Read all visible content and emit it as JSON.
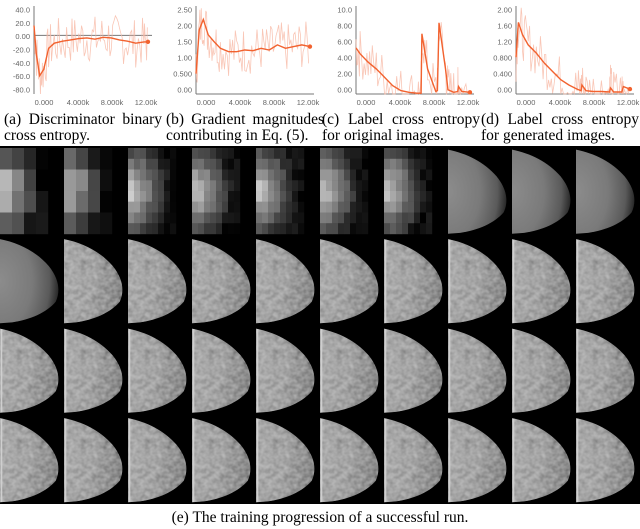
{
  "captions": {
    "a": "(a) Discriminator binary cross entropy.",
    "b": "(b) Gradient magnitudes contributing in Eq. (5).",
    "c": "(c) Label cross entropy for original images.",
    "d": "(d) Label cross entropy for generated images.",
    "e": "(e) The training progression of a successful run."
  },
  "colors": {
    "line": "#f2622f",
    "noise": "#f7b8a4",
    "axis": "#777777"
  },
  "chart_data": [
    {
      "type": "line",
      "x_ticks": [
        "0.000",
        "4.000k",
        "8.000k",
        "12.00k"
      ],
      "y_ticks": [
        "40.0",
        "20.0",
        "0.00",
        "-20.0",
        "-40.0",
        "-60.0",
        "-80.0"
      ],
      "xlim": [
        0,
        14500
      ],
      "ylim": [
        -90,
        45
      ],
      "series": [
        {
          "x": [
            0,
            300,
            700,
            1200,
            1800,
            2500,
            3500,
            4500,
            5500,
            6500,
            7500,
            8500,
            9500,
            10500,
            11500,
            12500,
            13500,
            14000
          ],
          "y": [
            15,
            -30,
            -62,
            -52,
            -20,
            -12,
            -9,
            -7,
            -5,
            -4,
            -6,
            -3,
            -4,
            -7,
            -9,
            -12,
            -10,
            -10
          ]
        }
      ]
    },
    {
      "type": "line",
      "x_ticks": [
        "0.000",
        "4.000k",
        "8.000k",
        "12.00k"
      ],
      "y_ticks": [
        "2.50",
        "2.00",
        "1.50",
        "1.00",
        "0.500",
        "0.00"
      ],
      "xlim": [
        0,
        14500
      ],
      "ylim": [
        0,
        2.6
      ],
      "series": [
        {
          "x": [
            0,
            400,
            900,
            1500,
            2200,
            3000,
            4000,
            5000,
            6000,
            7000,
            8000,
            9000,
            10000,
            11000,
            12000,
            13000,
            14000
          ],
          "y": [
            0.6,
            1.9,
            2.2,
            1.75,
            1.55,
            1.35,
            1.25,
            1.25,
            1.3,
            1.28,
            1.35,
            1.3,
            1.45,
            1.35,
            1.4,
            1.45,
            1.4
          ]
        }
      ]
    },
    {
      "type": "line",
      "x_ticks": [
        "0.000",
        "4.000k",
        "8.000k",
        "12.00k"
      ],
      "y_ticks": [
        "10.0",
        "8.00",
        "6.00",
        "4.00",
        "2.00",
        "0.00"
      ],
      "xlim": [
        0,
        14500
      ],
      "ylim": [
        0,
        10.5
      ],
      "series": [
        {
          "x": [
            0,
            500,
            1500,
            2500,
            3500,
            4500,
            5500,
            6500,
            7500,
            8000,
            8100,
            8800,
            9800,
            10000,
            10200,
            11000,
            11300,
            12000,
            12500,
            12600,
            13000,
            14000
          ],
          "y": [
            5.5,
            4.8,
            3.8,
            3.0,
            2.0,
            1.0,
            0.4,
            0.2,
            0.1,
            0.1,
            7.2,
            3.0,
            0.3,
            0.4,
            8.5,
            3.0,
            0.5,
            0.2,
            0.3,
            0.9,
            0.3,
            0.2
          ]
        }
      ]
    },
    {
      "type": "line",
      "x_ticks": [
        "0.000",
        "4.000k",
        "8.000k",
        "12.00k"
      ],
      "y_ticks": [
        "2.00",
        "1.60",
        "1.20",
        "0.800",
        "0.400",
        "0.00"
      ],
      "xlim": [
        0,
        14500
      ],
      "ylim": [
        0,
        2.15
      ],
      "series": [
        {
          "x": [
            0,
            300,
            800,
            1500,
            2500,
            3500,
            4500,
            5500,
            6500,
            7500,
            8000,
            8100,
            8600,
            9500,
            10500,
            11500,
            11600,
            12000,
            13000,
            13200,
            14000
          ],
          "y": [
            0.9,
            1.75,
            1.45,
            1.2,
            1.0,
            0.75,
            0.55,
            0.35,
            0.22,
            0.12,
            0.08,
            0.22,
            0.08,
            0.06,
            0.06,
            0.05,
            0.15,
            0.05,
            0.05,
            0.18,
            0.12
          ]
        }
      ]
    }
  ],
  "progression": {
    "rows": 4,
    "cols": 10,
    "resolutions": [
      [
        4,
        4,
        8,
        8,
        8,
        8,
        8,
        16,
        16,
        16
      ],
      [
        16,
        32,
        32,
        32,
        32,
        32,
        64,
        64,
        64,
        64
      ],
      [
        64,
        64,
        64,
        64,
        64,
        64,
        64,
        64,
        64,
        64
      ],
      [
        64,
        64,
        64,
        64,
        64,
        64,
        64,
        64,
        64,
        64
      ]
    ]
  }
}
